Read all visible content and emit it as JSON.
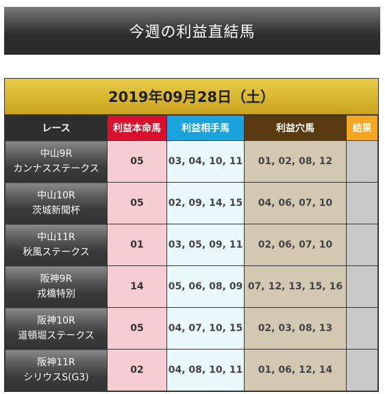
{
  "banner": {
    "title": "今週の利益直結馬"
  },
  "board": {
    "date": "2019年09月28日（土）",
    "headers": {
      "race": "レース",
      "honmei": "利益本命馬",
      "aite": "利益相手馬",
      "ana": "利益穴馬",
      "result": "結果"
    },
    "rows": [
      {
        "venue": "中山9R",
        "name": "カンナスステークス",
        "honmei": "05",
        "aite": "03, 04, 10, 11",
        "ana": "01, 02, 08, 12",
        "result": ""
      },
      {
        "venue": "中山10R",
        "name": "茨城新聞杯",
        "honmei": "05",
        "aite": "02, 09, 14, 15",
        "ana": "04, 06, 07, 10",
        "result": ""
      },
      {
        "venue": "中山11R",
        "name": "秋風ステークス",
        "honmei": "01",
        "aite": "03, 05, 09, 11",
        "ana": "02, 06, 07, 10",
        "result": ""
      },
      {
        "venue": "阪神9R",
        "name": "戎橋特別",
        "honmei": "14",
        "aite": "05, 06, 08, 09",
        "ana": "07, 12, 13, 15, 16",
        "result": ""
      },
      {
        "venue": "阪神10R",
        "name": "道頓堀ステークス",
        "honmei": "05",
        "aite": "04, 07, 10, 15",
        "ana": "02, 03, 08, 13",
        "result": ""
      },
      {
        "venue": "阪神11R",
        "name": "シリウスS(G3)",
        "honmei": "02",
        "aite": "04, 08, 10, 11",
        "ana": "01, 06, 12, 14",
        "result": ""
      }
    ]
  }
}
